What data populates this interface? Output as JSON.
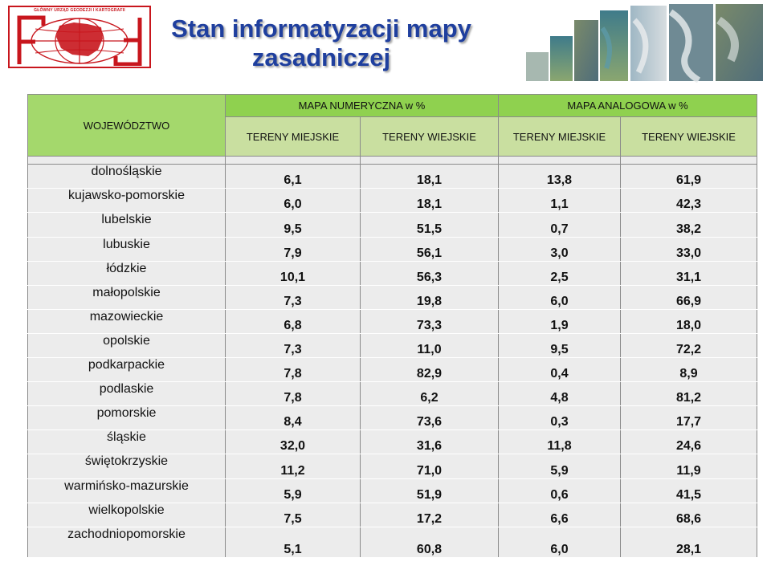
{
  "logo": {
    "text": "GŁÓWNY URZĄD GEODEZJI I KARTOGRAFII"
  },
  "title": {
    "line1": "Stan informatyzacji mapy",
    "line2": "zasadniczej"
  },
  "table": {
    "header_region": "WOJEWÓDZTWO",
    "group_digital": "MAPA NUMERYCZNA w %",
    "group_analog": "MAPA ANALOGOWA w %",
    "sub_urban": "TERENY MIEJSKIE",
    "sub_rural": "TERENY WIEJSKIE",
    "rows": [
      {
        "name": "dolnośląskie",
        "v": [
          "6,1",
          "18,1",
          "13,8",
          "61,9"
        ]
      },
      {
        "name": "kujawsko-pomorskie",
        "v": [
          "6,0",
          "18,1",
          "1,1",
          "42,3"
        ]
      },
      {
        "name": "lubelskie",
        "v": [
          "9,5",
          "51,5",
          "0,7",
          "38,2"
        ]
      },
      {
        "name": "lubuskie",
        "v": [
          "7,9",
          "56,1",
          "3,0",
          "33,0"
        ]
      },
      {
        "name": "łódzkie",
        "v": [
          "10,1",
          "56,3",
          "2,5",
          "31,1"
        ]
      },
      {
        "name": "małopolskie",
        "v": [
          "7,3",
          "19,8",
          "6,0",
          "66,9"
        ]
      },
      {
        "name": "mazowieckie",
        "v": [
          "6,8",
          "73,3",
          "1,9",
          "18,0"
        ]
      },
      {
        "name": "opolskie",
        "v": [
          "7,3",
          "11,0",
          "9,5",
          "72,2"
        ]
      },
      {
        "name": "podkarpackie",
        "v": [
          "7,8",
          "82,9",
          "0,4",
          "8,9"
        ]
      },
      {
        "name": "podlaskie",
        "v": [
          "7,8",
          "6,2",
          "4,8",
          "81,2"
        ]
      },
      {
        "name": "pomorskie",
        "v": [
          "8,4",
          "73,6",
          "0,3",
          "17,7"
        ]
      },
      {
        "name": "śląskie",
        "v": [
          "32,0",
          "31,6",
          "11,8",
          "24,6"
        ]
      },
      {
        "name": "świętokrzyskie",
        "v": [
          "11,2",
          "71,0",
          "5,9",
          "11,9"
        ]
      },
      {
        "name": "warmińsko-mazurskie",
        "v": [
          "5,9",
          "51,9",
          "0,6",
          "41,5"
        ]
      },
      {
        "name": "wielkopolskie",
        "v": [
          "7,5",
          "17,2",
          "6,6",
          "68,6"
        ]
      },
      {
        "name": "zachodniopomorskie",
        "v": [
          "5,1",
          "60,8",
          "6,0",
          "28,1"
        ]
      }
    ]
  },
  "colors": {
    "title": "#1f3f9e",
    "header_green": "#8fd14f",
    "subheader_green": "#c9dfa0",
    "logo_red": "#c8161d"
  }
}
